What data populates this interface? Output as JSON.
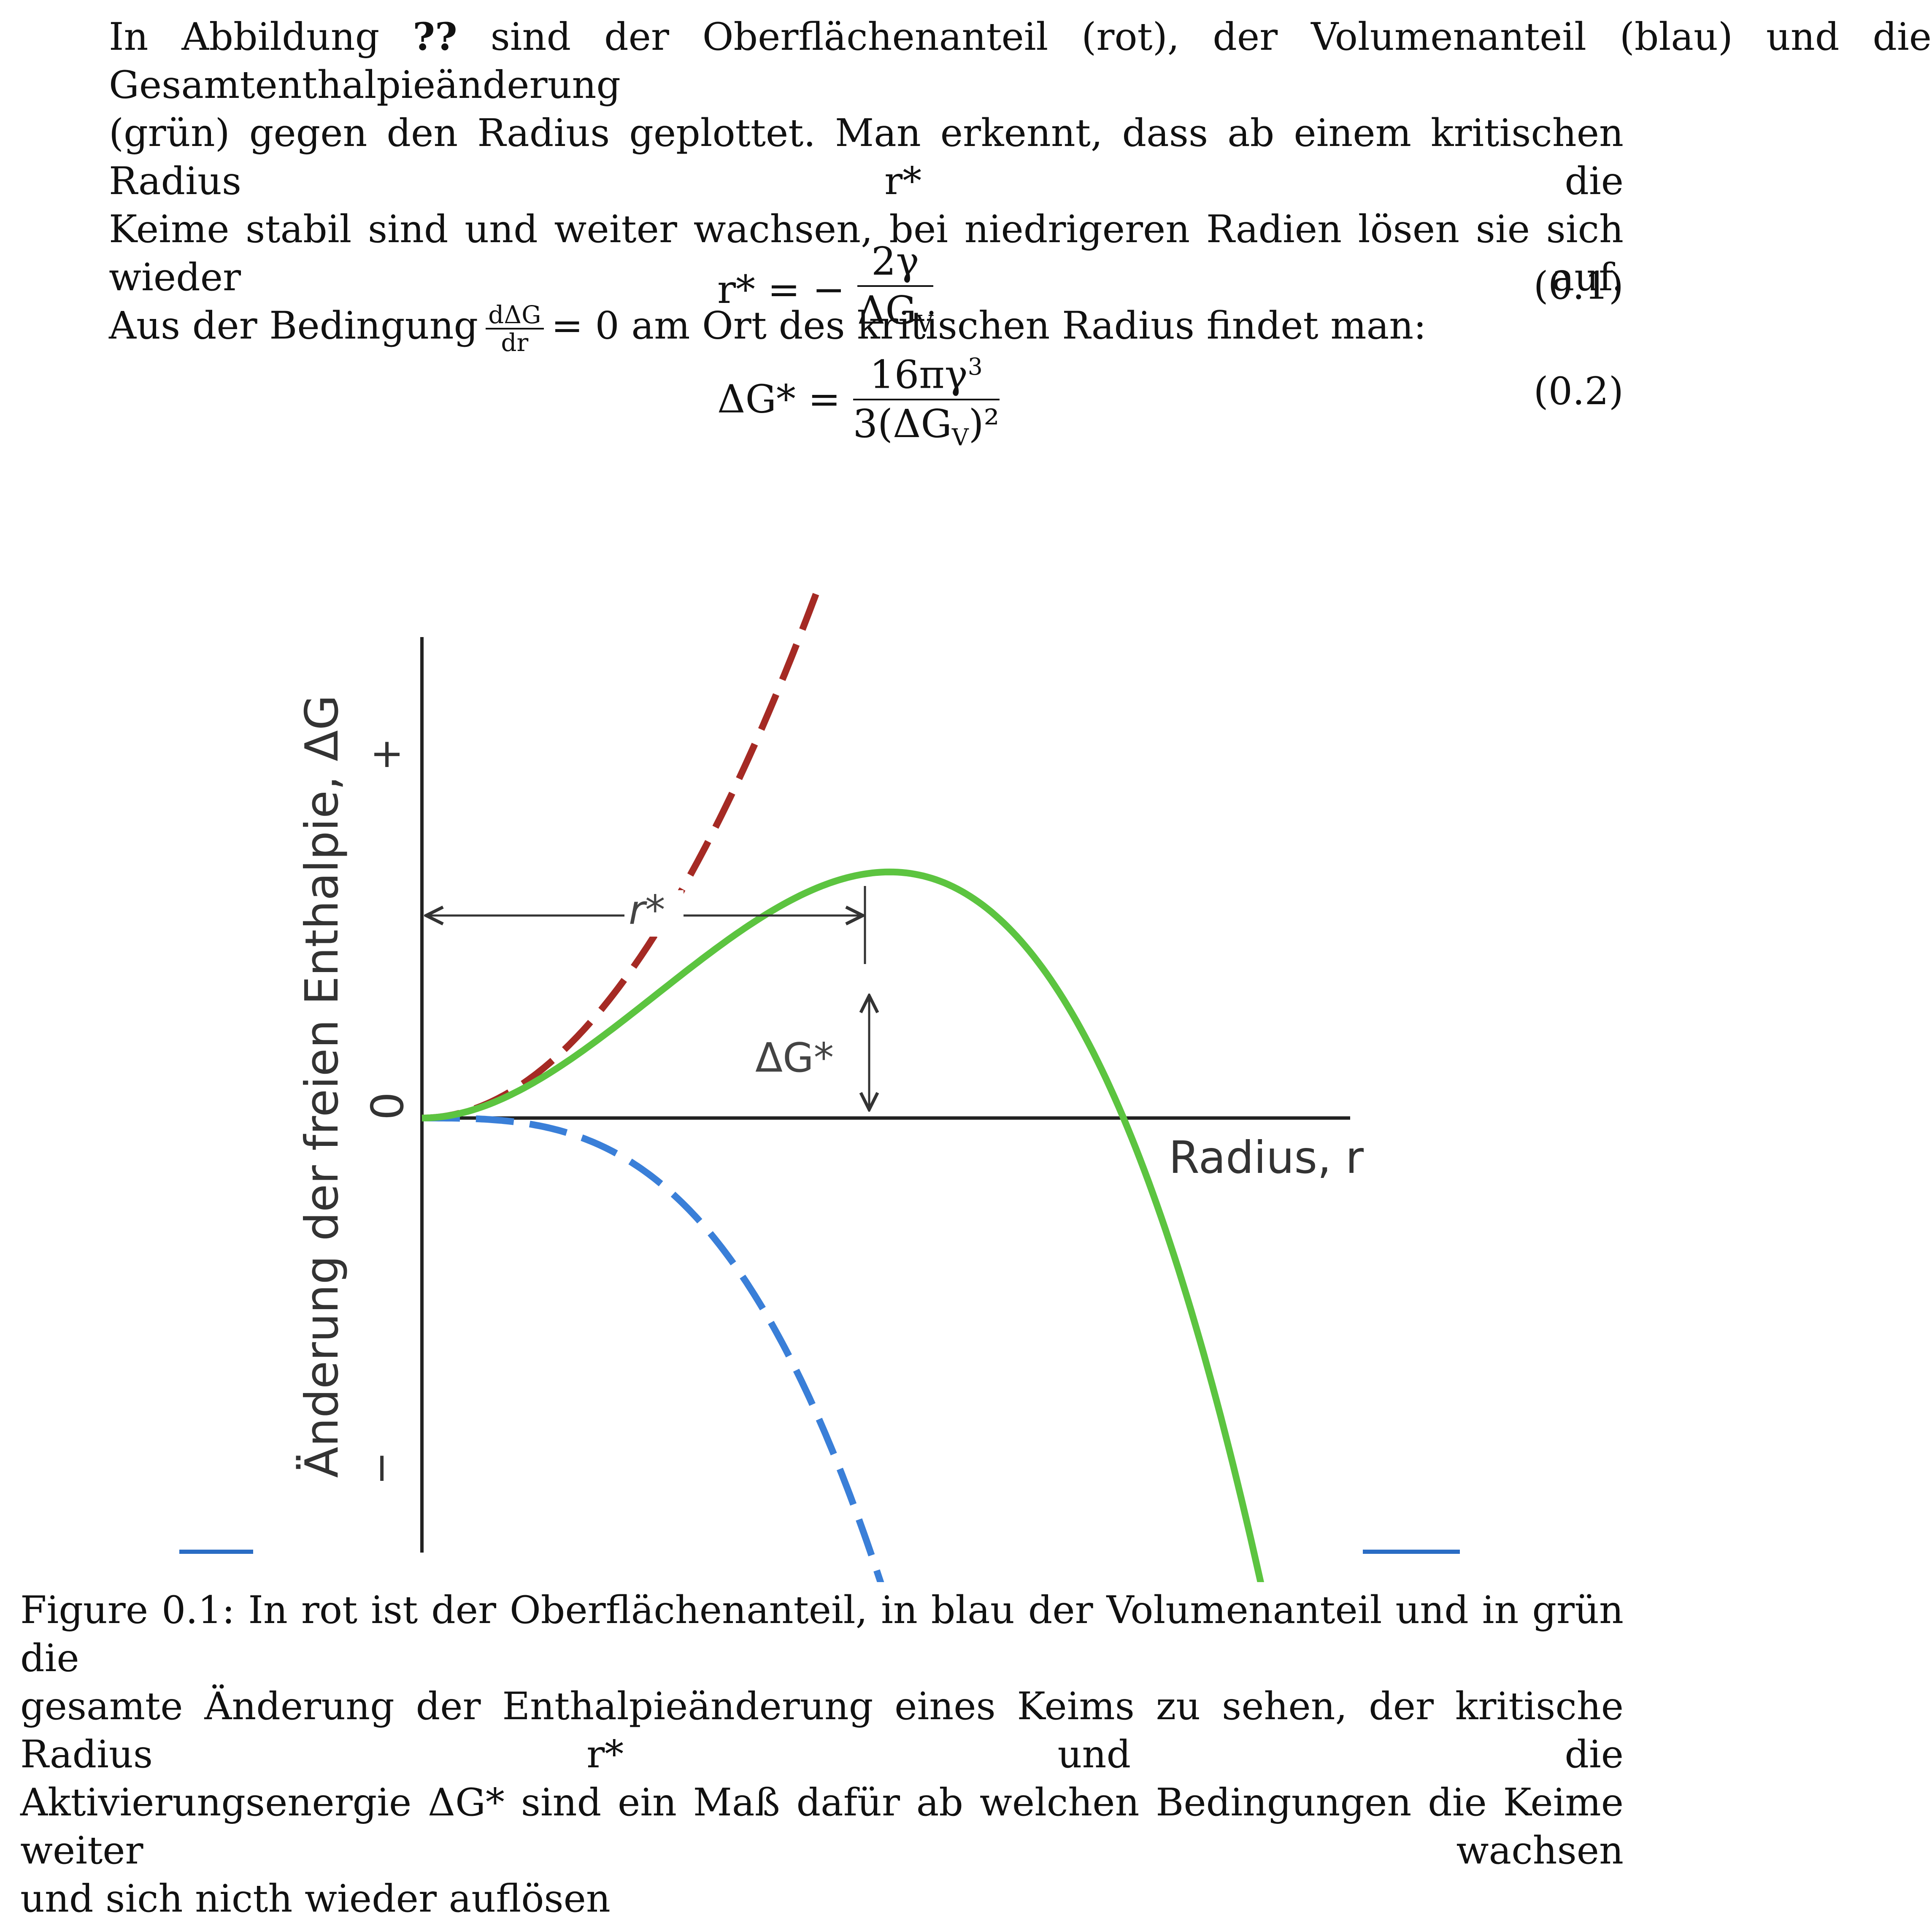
{
  "paragraph": {
    "line1_pre": "In Abbildung ",
    "line1_ref": "??",
    "line1_post": " sind der Oberflächenanteil (rot), der Volumenanteil (blau) und die Gesamtenthalpieänderung",
    "line2": "(grün) gegen den Radius geplottet. Man erkennt, dass ab einem kritischen Radius r* die",
    "line3": "Keime stabil sind und weiter wachsen, bei niedrigeren Radien lösen sie sich wieder auf.",
    "line4_pre": "Aus der Bedingung",
    "line4_frac_num": "dΔG",
    "line4_frac_den": "dr",
    "line4_post": "= 0 am Ort des kritischen Radius findet man:"
  },
  "equations": [
    {
      "lhs": "r* = −",
      "num": "2γ",
      "den": "ΔG",
      "den_sub": "V",
      "number": "(0.1)"
    },
    {
      "lhs": "ΔG* =",
      "num": "16πγ",
      "num_sup": "3",
      "den": "3(ΔG",
      "den_sub": "V",
      "den_post": ")²",
      "number": "(0.2)"
    }
  ],
  "chart_data": {
    "type": "line",
    "ylabel": "Änderung der freien Enthalpie, ΔG",
    "xlabel": "Radius, r",
    "y_tick_labels": [
      "+",
      "0",
      "−"
    ],
    "series": [
      {
        "color": "#a52a24",
        "style": "dashed",
        "shape": "r^2"
      },
      {
        "color": "#3a7fd8",
        "style": "dashed",
        "shape": "-r^3"
      },
      {
        "color": "#5cc440",
        "style": "solid",
        "shape": "r^2 - r^3"
      }
    ],
    "annotations": [
      "r*",
      "ΔG*"
    ]
  },
  "caption": {
    "line1": "Figure 0.1: In rot ist der Oberflächenanteil, in blau der Volumenanteil und in grün die",
    "line2": "gesamte Änderung der Enthalpieänderung eines Keims zu sehen, der kritische Radius r* und die",
    "line3": "Aktivierungsenergie ΔG* sind ein Maß dafür ab welchen Bedingungen die Keime weiter wachsen",
    "line4": "und sich nicth wieder auflösen"
  }
}
